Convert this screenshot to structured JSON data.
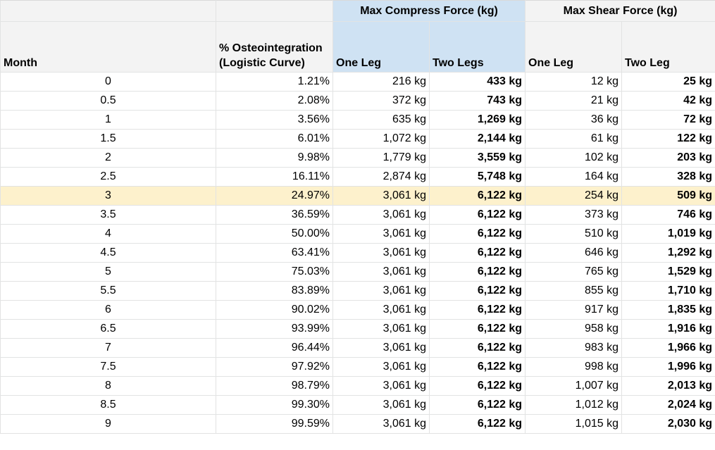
{
  "group_headers": {
    "compress": "Max Compress Force (kg)",
    "shear": "Max Shear Force (kg)"
  },
  "column_headers": {
    "month": "Month",
    "osteo": "% Osteointegration (Logistic Curve)",
    "compress_one": "One Leg",
    "compress_two": "Two Legs",
    "shear_one": "One Leg",
    "shear_two": "Two Leg"
  },
  "highlight_color": "#fdf1cc",
  "header_accent_color": "#cfe2f3",
  "rows": [
    {
      "month": "0",
      "osteo": "1.21%",
      "c1": "216 kg",
      "c2": "433 kg",
      "s1": "12 kg",
      "s2": "25 kg"
    },
    {
      "month": "0.5",
      "osteo": "2.08%",
      "c1": "372 kg",
      "c2": "743 kg",
      "s1": "21 kg",
      "s2": "42 kg"
    },
    {
      "month": "1",
      "osteo": "3.56%",
      "c1": "635 kg",
      "c2": "1,269 kg",
      "s1": "36 kg",
      "s2": "72 kg"
    },
    {
      "month": "1.5",
      "osteo": "6.01%",
      "c1": "1,072 kg",
      "c2": "2,144 kg",
      "s1": "61 kg",
      "s2": "122 kg"
    },
    {
      "month": "2",
      "osteo": "9.98%",
      "c1": "1,779 kg",
      "c2": "3,559 kg",
      "s1": "102 kg",
      "s2": "203 kg"
    },
    {
      "month": "2.5",
      "osteo": "16.11%",
      "c1": "2,874 kg",
      "c2": "5,748 kg",
      "s1": "164 kg",
      "s2": "328 kg"
    },
    {
      "month": "3",
      "osteo": "24.97%",
      "c1": "3,061 kg",
      "c2": "6,122 kg",
      "s1": "254 kg",
      "s2": "509 kg",
      "highlight": true
    },
    {
      "month": "3.5",
      "osteo": "36.59%",
      "c1": "3,061 kg",
      "c2": "6,122 kg",
      "s1": "373 kg",
      "s2": "746 kg"
    },
    {
      "month": "4",
      "osteo": "50.00%",
      "c1": "3,061 kg",
      "c2": "6,122 kg",
      "s1": "510 kg",
      "s2": "1,019 kg"
    },
    {
      "month": "4.5",
      "osteo": "63.41%",
      "c1": "3,061 kg",
      "c2": "6,122 kg",
      "s1": "646 kg",
      "s2": "1,292 kg"
    },
    {
      "month": "5",
      "osteo": "75.03%",
      "c1": "3,061 kg",
      "c2": "6,122 kg",
      "s1": "765 kg",
      "s2": "1,529 kg"
    },
    {
      "month": "5.5",
      "osteo": "83.89%",
      "c1": "3,061 kg",
      "c2": "6,122 kg",
      "s1": "855 kg",
      "s2": "1,710 kg"
    },
    {
      "month": "6",
      "osteo": "90.02%",
      "c1": "3,061 kg",
      "c2": "6,122 kg",
      "s1": "917 kg",
      "s2": "1,835 kg"
    },
    {
      "month": "6.5",
      "osteo": "93.99%",
      "c1": "3,061 kg",
      "c2": "6,122 kg",
      "s1": "958 kg",
      "s2": "1,916 kg"
    },
    {
      "month": "7",
      "osteo": "96.44%",
      "c1": "3,061 kg",
      "c2": "6,122 kg",
      "s1": "983 kg",
      "s2": "1,966 kg"
    },
    {
      "month": "7.5",
      "osteo": "97.92%",
      "c1": "3,061 kg",
      "c2": "6,122 kg",
      "s1": "998 kg",
      "s2": "1,996 kg"
    },
    {
      "month": "8",
      "osteo": "98.79%",
      "c1": "3,061 kg",
      "c2": "6,122 kg",
      "s1": "1,007 kg",
      "s2": "2,013 kg"
    },
    {
      "month": "8.5",
      "osteo": "99.30%",
      "c1": "3,061 kg",
      "c2": "6,122 kg",
      "s1": "1,012 kg",
      "s2": "2,024 kg"
    },
    {
      "month": "9",
      "osteo": "99.59%",
      "c1": "3,061 kg",
      "c2": "6,122 kg",
      "s1": "1,015 kg",
      "s2": "2,030 kg"
    }
  ]
}
